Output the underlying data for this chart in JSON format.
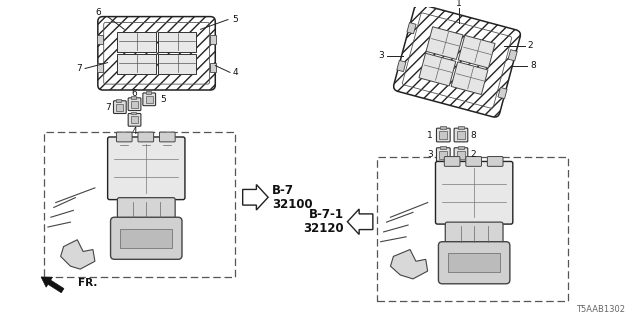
{
  "bg_color": "#ffffff",
  "diagram_id": "T5AAB1302",
  "fr_label": "FR.",
  "left_part_label_1": "B-7",
  "left_part_label_2": "32100",
  "right_part_label_1": "B-7-1",
  "right_part_label_2": "32120",
  "line_color": "#222222",
  "hatch_color": "#888888",
  "label_color": "#111111"
}
